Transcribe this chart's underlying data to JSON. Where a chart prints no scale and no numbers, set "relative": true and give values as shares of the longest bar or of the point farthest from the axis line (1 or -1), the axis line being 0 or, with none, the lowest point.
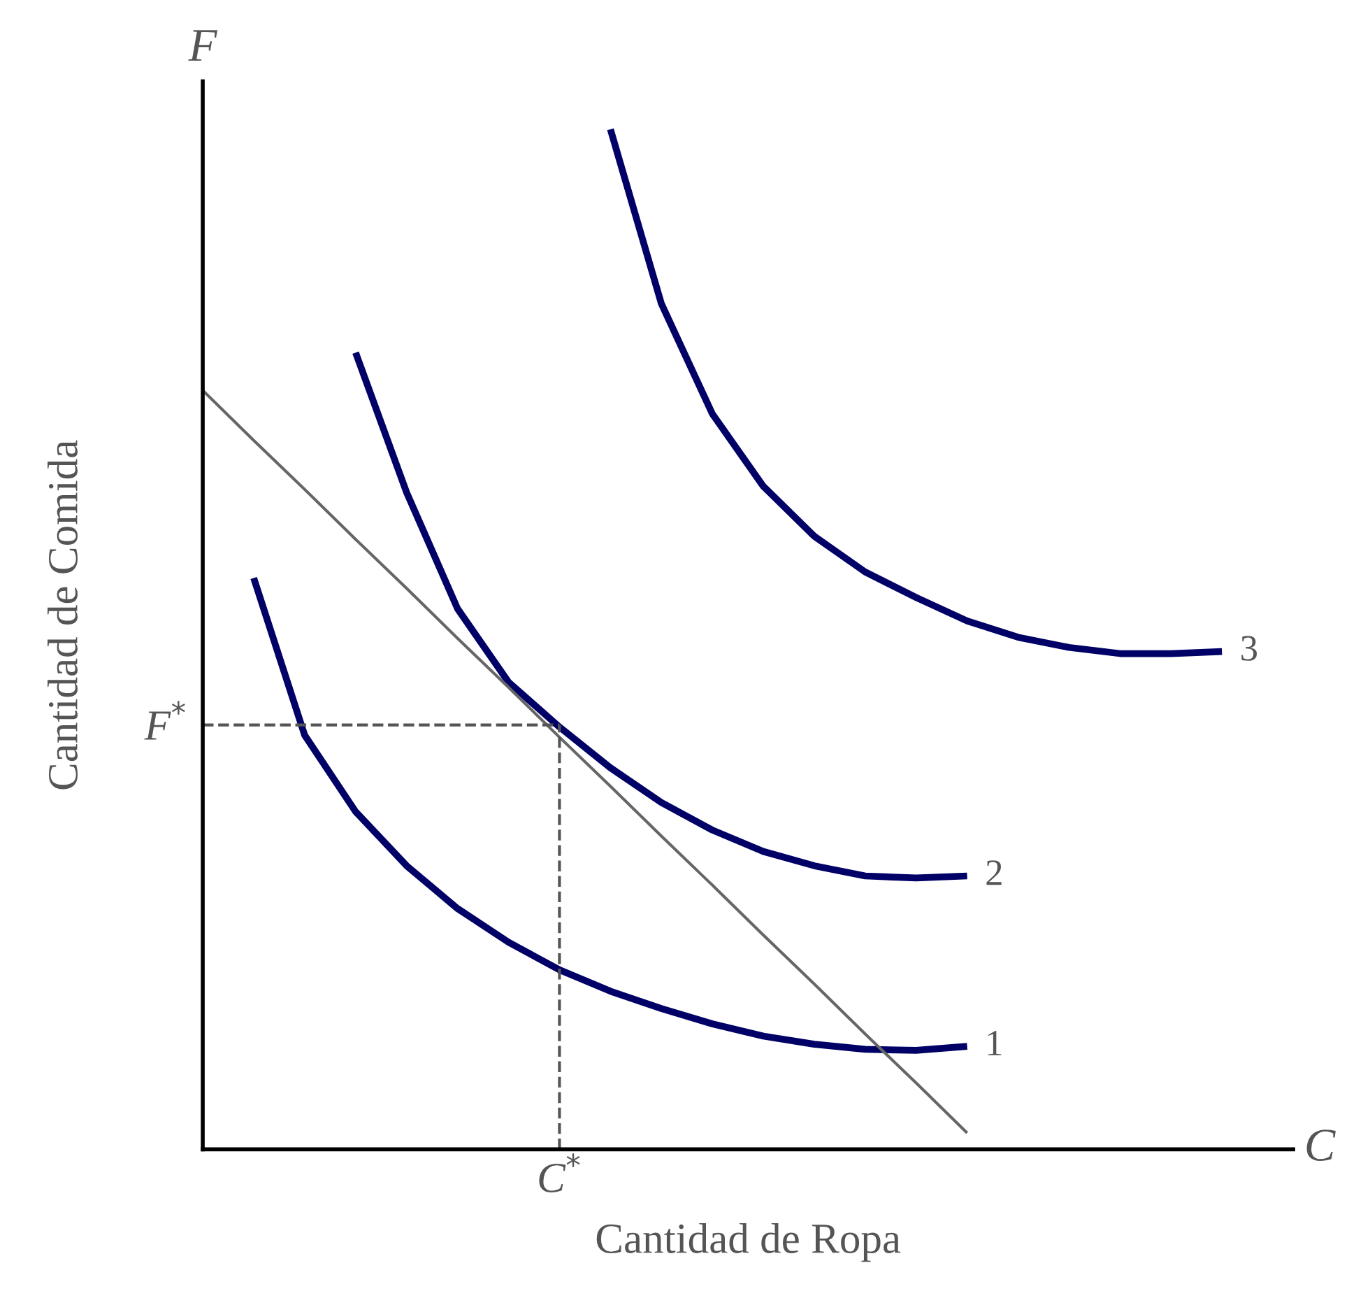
{
  "chart_data": {
    "type": "line",
    "relative": true,
    "xlabel": "Cantidad de Ropa",
    "ylabel": "Cantidad de Comida",
    "annotations": [
      "F",
      "C",
      "C$^{*}$"
    ],
    "legend": false,
    "grid": false,
    "marker": "none",
    "categories": [
      null,
      null,
      null,
      null,
      null,
      null,
      null,
      null,
      null,
      null,
      null,
      null,
      null,
      null,
      null,
      null,
      null,
      null,
      null,
      null,
      null,
      null
    ],
    "series": [
      {
        "name": "1",
        "color": "#000066",
        "values": [
          null,
          0.56,
          0.406,
          0.331,
          0.278,
          0.236,
          0.203,
          0.176,
          0.155,
          0.138,
          0.123,
          0.111,
          0.103,
          0.098,
          0.097,
          0.101,
          null,
          null,
          null,
          null,
          null,
          null
        ]
      },
      {
        "name": "2",
        "color": "#000066",
        "values": [
          null,
          null,
          null,
          0.781,
          0.644,
          0.53,
          0.458,
          0.414,
          0.374,
          0.34,
          0.313,
          0.292,
          0.278,
          0.268,
          0.266,
          0.268,
          null,
          null,
          null,
          null,
          null,
          null
        ]
      },
      {
        "name": "3",
        "color": "#000066",
        "values": [
          null,
          null,
          null,
          null,
          null,
          null,
          null,
          null,
          1.0,
          0.829,
          0.721,
          0.65,
          0.601,
          0.566,
          0.541,
          0.518,
          0.502,
          0.492,
          0.486,
          0.486,
          0.488,
          null
        ]
      },
      {
        "color": "#666666",
        "values": [
          0.744,
          0.695,
          0.647,
          0.598,
          0.55,
          0.501,
          0.453,
          0.404,
          0.356,
          0.307,
          0.259,
          0.21,
          0.162,
          0.113,
          0.065,
          0.016,
          null,
          null,
          null,
          null,
          null,
          null
        ]
      }
    ],
    "ref_lines": [
      {
        "axis": "y",
        "value": 0.416,
        "label": "F$^{*}$",
        "color": "#555555",
        "line_style": "dashed"
      }
    ]
  }
}
